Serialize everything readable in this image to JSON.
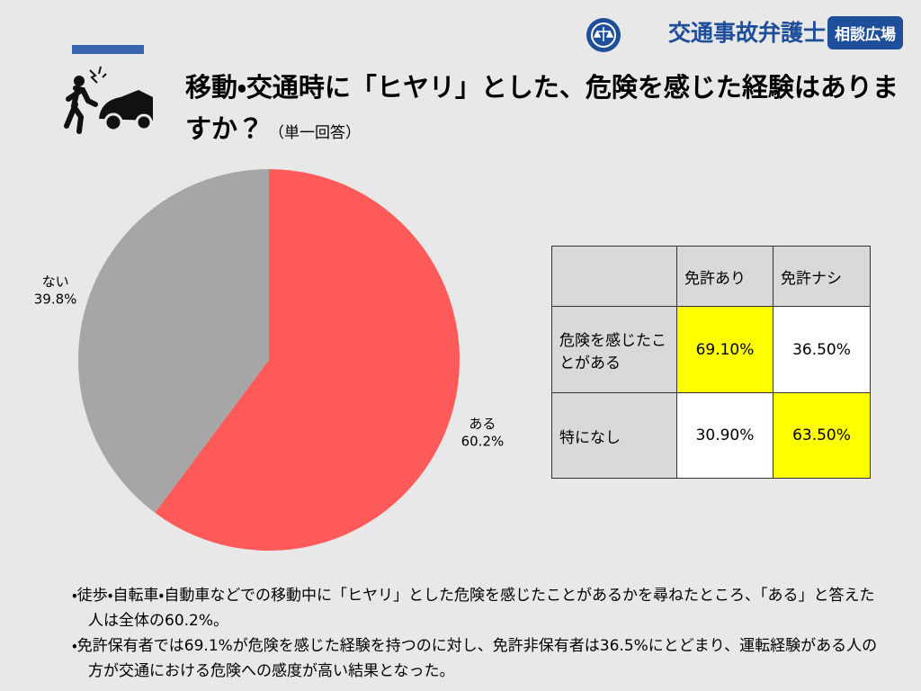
{
  "header": {
    "logo": "交通事故弁護士",
    "badge": "相談広場"
  },
  "chart_data": {
    "type": "pie",
    "title": "移動・交通時に「ヒヤリ」とした、危険を感じた経験はありますか？",
    "subtitle": "（単一回答）",
    "categories": [
      "ある",
      "ない"
    ],
    "values": [
      60.2,
      39.8
    ],
    "value_labels": [
      "60.2%",
      "39.8%"
    ],
    "colors": [
      "#ff5a5a",
      "#a6a6a6"
    ]
  },
  "table": {
    "columns": [
      "免許あり",
      "免許ナシ"
    ],
    "rows": [
      {
        "label": "危険を感じたことがある",
        "values": [
          "69.10%",
          "36.50%"
        ]
      },
      {
        "label": "特になし",
        "values": [
          "30.90%",
          "63.50%"
        ]
      }
    ]
  },
  "notes": [
    "・徒歩・自転車・自動車などでの移動中に「ヒヤリ」とした危険を感じたことがあるかを尋ねたところ、「ある」と答えた人は全体の60.2%。",
    "・免許保有者では69.1%が危険を感じた経験を持つのに対し、免許非保有者は36.5%にとどまり、運転経験がある人の方が交通における危険への感度が高い結果となった。"
  ]
}
